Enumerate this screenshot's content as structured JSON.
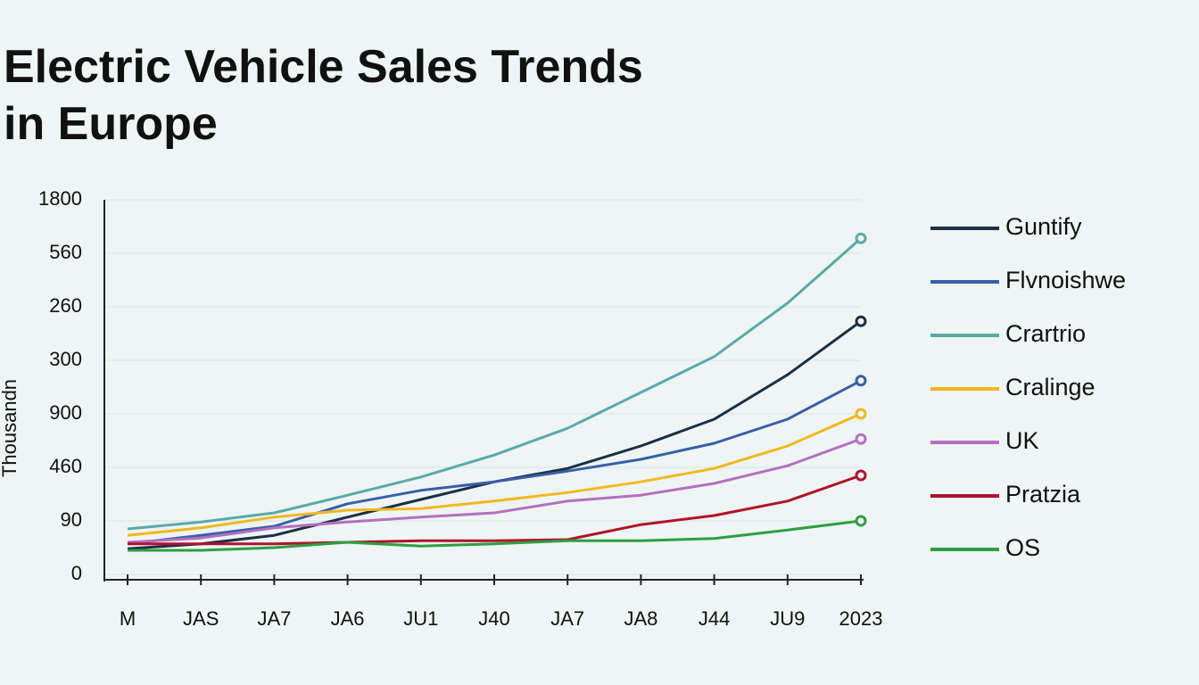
{
  "chart_data": {
    "type": "line",
    "title": "Electric Vehicle Sales Trends in Europe",
    "y_label": "Thousandn",
    "categories": [
      "M",
      "JAS",
      "JA7",
      "JA6",
      "JU1",
      "J40",
      "JA7",
      "JA8",
      "J44",
      "JU9",
      "2023"
    ],
    "ylim": [
      0,
      7
    ],
    "yticks": [
      0,
      {
        "value": 1,
        "label": "90"
      },
      {
        "value": 2,
        "label": "460"
      },
      {
        "value": 3,
        "label": "900"
      },
      {
        "value": 4,
        "label": "300"
      },
      {
        "value": 5,
        "label": "260"
      },
      {
        "value": 6,
        "label": "560"
      },
      {
        "value": 7,
        "label": "1800"
      }
    ],
    "grid": true,
    "legend": "right",
    "series": [
      {
        "name": "Guntify",
        "color": "#1b2f45",
        "values": [
          0.48,
          0.57,
          0.73,
          1.07,
          1.4,
          1.73,
          1.98,
          2.4,
          2.9,
          3.73,
          4.73
        ]
      },
      {
        "name": "Flvnoishwe",
        "color": "#3a5ea8",
        "values": [
          0.57,
          0.73,
          0.9,
          1.32,
          1.57,
          1.73,
          1.93,
          2.15,
          2.45,
          2.9,
          3.62
        ]
      },
      {
        "name": "Crartrio",
        "color": "#5aaaa8",
        "values": [
          0.85,
          0.98,
          1.15,
          1.48,
          1.82,
          2.23,
          2.73,
          3.4,
          4.07,
          5.07,
          6.28
        ]
      },
      {
        "name": "Cralinge",
        "color": "#f2b820",
        "values": [
          0.73,
          0.87,
          1.07,
          1.2,
          1.23,
          1.37,
          1.53,
          1.73,
          1.98,
          2.4,
          3.0
        ]
      },
      {
        "name": "UK",
        "color": "#b56fbf",
        "values": [
          0.6,
          0.68,
          0.87,
          0.98,
          1.07,
          1.15,
          1.37,
          1.48,
          1.7,
          2.03,
          2.53
        ]
      },
      {
        "name": "Pratzia",
        "color": "#b0122a",
        "values": [
          0.57,
          0.57,
          0.57,
          0.6,
          0.63,
          0.63,
          0.65,
          0.93,
          1.1,
          1.37,
          1.85
        ]
      },
      {
        "name": "OS",
        "color": "#2e9e44",
        "values": [
          0.45,
          0.45,
          0.5,
          0.6,
          0.53,
          0.57,
          0.63,
          0.63,
          0.67,
          0.83,
          1.0
        ]
      }
    ]
  }
}
